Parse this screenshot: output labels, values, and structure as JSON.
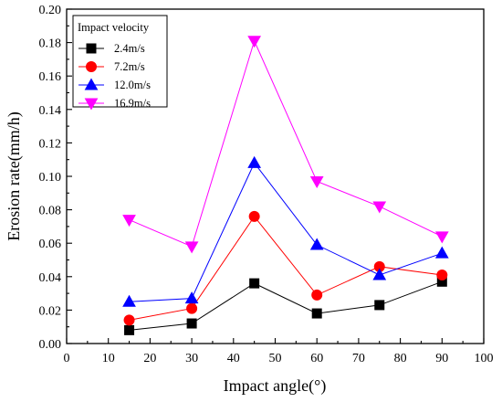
{
  "chart_data": {
    "type": "line",
    "xlabel": "Impact angle(°)",
    "ylabel": "Erosion rate(mm/h)",
    "xlim": [
      0,
      100
    ],
    "ylim": [
      0.0,
      0.2
    ],
    "x_ticks": [
      "0",
      "10",
      "20",
      "30",
      "40",
      "50",
      "60",
      "70",
      "80",
      "90",
      "100"
    ],
    "y_ticks": [
      "0.00",
      "0.02",
      "0.04",
      "0.06",
      "0.08",
      "0.10",
      "0.12",
      "0.14",
      "0.16",
      "0.18",
      "0.20"
    ],
    "grid": false,
    "legend": {
      "title": "Impact velocity",
      "position": "top-left"
    },
    "x": [
      15,
      30,
      45,
      60,
      75,
      90
    ],
    "series": [
      {
        "name": "2.4m/s",
        "values": [
          0.008,
          0.012,
          0.036,
          0.018,
          0.023,
          0.037
        ],
        "color": "#000000",
        "marker": "square"
      },
      {
        "name": "7.2m/s",
        "values": [
          0.014,
          0.021,
          0.076,
          0.029,
          0.046,
          0.041
        ],
        "color": "#ff0000",
        "marker": "circle"
      },
      {
        "name": "12.0m/s",
        "values": [
          0.025,
          0.027,
          0.108,
          0.059,
          0.041,
          0.054
        ],
        "color": "#0000ff",
        "marker": "triangle-up"
      },
      {
        "name": "16.9m/s",
        "values": [
          0.074,
          0.058,
          0.181,
          0.097,
          0.082,
          0.064
        ],
        "color": "#ff00ff",
        "marker": "triangle-down"
      }
    ]
  }
}
